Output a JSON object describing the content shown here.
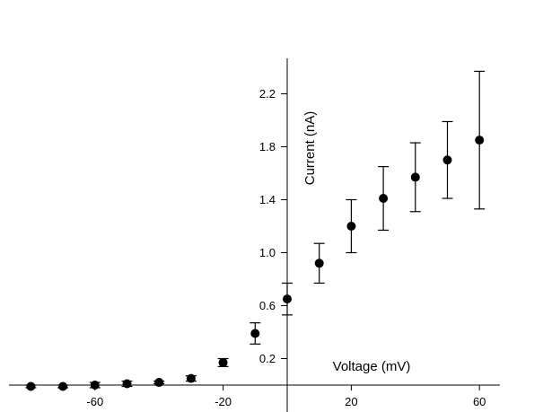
{
  "chart_data": {
    "type": "scatter",
    "title": "",
    "xlabel": "Voltage (mV)",
    "ylabel": "Current (nA)",
    "xlim": [
      -80,
      66
    ],
    "ylim": [
      -0.05,
      2.6
    ],
    "grid": false,
    "x_ticks": [
      -60,
      -20,
      20,
      60
    ],
    "x_tick_labels": [
      "-60",
      "-20",
      "20",
      "60"
    ],
    "y_ticks": [
      0.2,
      0.6,
      1.0,
      1.4,
      1.8,
      2.2
    ],
    "y_tick_labels": [
      "0.2",
      "0.6",
      "1.0",
      "1.4",
      "1.8",
      "2.2"
    ],
    "series": [
      {
        "x": [
          -80,
          -70,
          -60,
          -50,
          -40,
          -30,
          -20,
          -10,
          0,
          10,
          20,
          30,
          40,
          50,
          60
        ],
        "y": [
          -0.01,
          -0.01,
          0.0,
          0.01,
          0.02,
          0.05,
          0.17,
          0.39,
          0.65,
          0.92,
          1.2,
          1.41,
          1.57,
          1.7,
          1.85
        ],
        "error": [
          0.01,
          0.01,
          0.02,
          0.02,
          0.01,
          0.02,
          0.03,
          0.08,
          0.12,
          0.15,
          0.2,
          0.24,
          0.26,
          0.29,
          0.52
        ]
      }
    ]
  }
}
